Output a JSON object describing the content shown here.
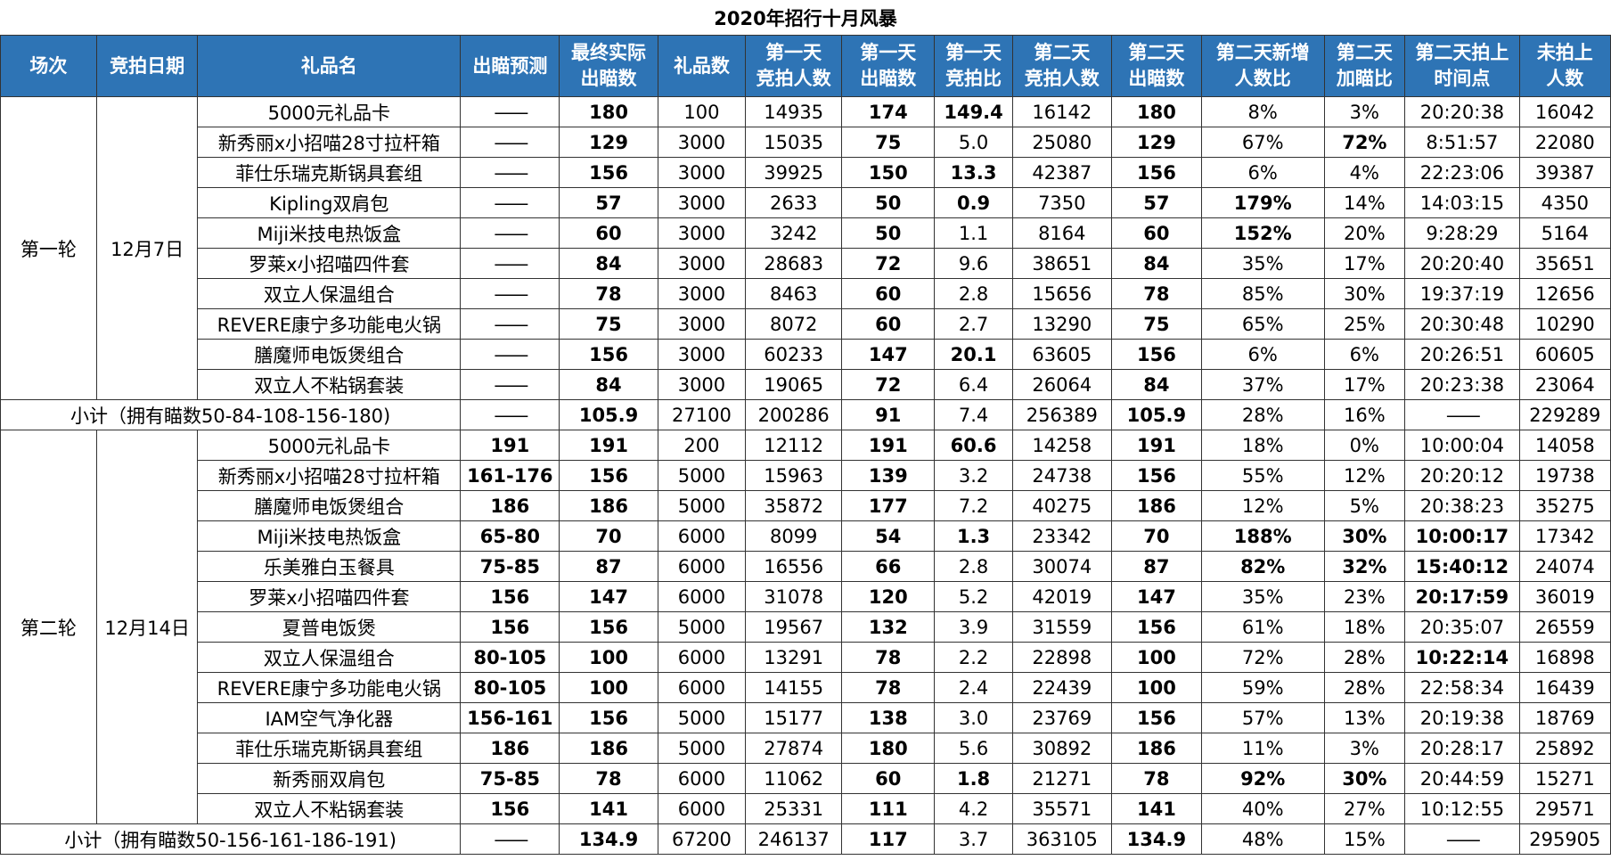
{
  "title": "2020年招行十月风暴",
  "headers": [
    "场次",
    "竞拍日期",
    "礼品名",
    "出瞄预测",
    "最终实际出瞄数",
    "礼品数",
    "第一天竞拍人数",
    "第一天出瞄数",
    "第一天竞拍比",
    "第二天竞拍人数",
    "第二天出瞄数",
    "第二天新增人数比",
    "第二天加瞄比",
    "第二天拍上时间点",
    "未拍上人数"
  ],
  "header_lines": [
    [
      "场次"
    ],
    [
      "竞拍日期"
    ],
    [
      "礼品名"
    ],
    [
      "出瞄预测"
    ],
    [
      "最终实际",
      "出瞄数"
    ],
    [
      "礼品数"
    ],
    [
      "第一天",
      "竞拍人数"
    ],
    [
      "第一天",
      "出瞄数"
    ],
    [
      "第一天",
      "竞拍比"
    ],
    [
      "第二天",
      "竞拍人数"
    ],
    [
      "第二天",
      "出瞄数"
    ],
    [
      "第二天新增",
      "人数比"
    ],
    [
      "第二天",
      "加瞄比"
    ],
    [
      "第二天拍上",
      "时间点"
    ],
    [
      "未拍上",
      "人数"
    ]
  ],
  "colors": {
    "header_bg": "#2e74b5",
    "red": "#e00000",
    "green": "#1fa84a"
  },
  "rounds": [
    {
      "name": "第一轮",
      "date": "12月7日",
      "rows": [
        {
          "gift": "5000元礼品卡",
          "pred": "——",
          "pred_color": "red",
          "final": "180",
          "gifts": "100",
          "d1_people": "14935",
          "d1_out": "174",
          "d1_ratio": "149.4",
          "d1_ratio_color": "red",
          "d2_people": "16142",
          "d2_out": "180",
          "d2_new": "8%",
          "d2_new_color": "",
          "d2_add": "3%",
          "d2_add_color": "",
          "d2_time": "20:20:38",
          "d2_time_bold": false,
          "miss": "16042"
        },
        {
          "gift": "新秀丽x小招喵28寸拉杆箱",
          "pred": "——",
          "pred_color": "red",
          "final": "129",
          "gifts": "3000",
          "d1_people": "15035",
          "d1_out": "75",
          "d1_ratio": "5.0",
          "d1_ratio_color": "",
          "d2_people": "25080",
          "d2_out": "129",
          "d2_new": "67%",
          "d2_new_color": "",
          "d2_add": "72%",
          "d2_add_color": "red",
          "d2_time": "8:51:57",
          "d2_time_bold": false,
          "miss": "22080"
        },
        {
          "gift": "菲仕乐瑞克斯锅具套组",
          "pred": "——",
          "pred_color": "red",
          "final": "156",
          "gifts": "3000",
          "d1_people": "39925",
          "d1_out": "150",
          "d1_ratio": "13.3",
          "d1_ratio_color": "red",
          "d2_people": "42387",
          "d2_out": "156",
          "d2_new": "6%",
          "d2_new_color": "",
          "d2_add": "4%",
          "d2_add_color": "",
          "d2_time": "22:23:06",
          "d2_time_bold": false,
          "miss": "39387"
        },
        {
          "gift": "Kipling双肩包",
          "pred": "——",
          "pred_color": "red",
          "final": "57",
          "gifts": "3000",
          "d1_people": "2633",
          "d1_out": "50",
          "d1_ratio": "0.9",
          "d1_ratio_color": "green",
          "d2_people": "7350",
          "d2_out": "57",
          "d2_new": "179%",
          "d2_new_color": "red",
          "d2_add": "14%",
          "d2_add_color": "",
          "d2_time": "14:03:15",
          "d2_time_bold": false,
          "miss": "4350"
        },
        {
          "gift": "Miji米技电热饭盒",
          "pred": "——",
          "pred_color": "red",
          "final": "60",
          "gifts": "3000",
          "d1_people": "3242",
          "d1_out": "50",
          "d1_ratio": "1.1",
          "d1_ratio_color": "",
          "d2_people": "8164",
          "d2_out": "60",
          "d2_new": "152%",
          "d2_new_color": "red",
          "d2_add": "20%",
          "d2_add_color": "",
          "d2_time": "9:28:29",
          "d2_time_bold": false,
          "miss": "5164"
        },
        {
          "gift": "罗莱x小招喵四件套",
          "pred": "——",
          "pred_color": "red",
          "final": "84",
          "gifts": "3000",
          "d1_people": "28683",
          "d1_out": "72",
          "d1_ratio": "9.6",
          "d1_ratio_color": "",
          "d2_people": "38651",
          "d2_out": "84",
          "d2_new": "35%",
          "d2_new_color": "",
          "d2_add": "17%",
          "d2_add_color": "",
          "d2_time": "20:20:40",
          "d2_time_bold": false,
          "miss": "35651"
        },
        {
          "gift": "双立人保温组合",
          "pred": "——",
          "pred_color": "red",
          "final": "78",
          "gifts": "3000",
          "d1_people": "8463",
          "d1_out": "60",
          "d1_ratio": "2.8",
          "d1_ratio_color": "",
          "d2_people": "15656",
          "d2_out": "78",
          "d2_new": "85%",
          "d2_new_color": "",
          "d2_add": "30%",
          "d2_add_color": "",
          "d2_time": "19:37:19",
          "d2_time_bold": false,
          "miss": "12656"
        },
        {
          "gift": "REVERE康宁多功能电火锅",
          "pred": "——",
          "pred_color": "red",
          "final": "75",
          "gifts": "3000",
          "d1_people": "8072",
          "d1_out": "60",
          "d1_ratio": "2.7",
          "d1_ratio_color": "",
          "d2_people": "13290",
          "d2_out": "75",
          "d2_new": "65%",
          "d2_new_color": "",
          "d2_add": "25%",
          "d2_add_color": "",
          "d2_time": "20:30:48",
          "d2_time_bold": false,
          "miss": "10290"
        },
        {
          "gift": "膳魔师电饭煲组合",
          "pred": "——",
          "pred_color": "red",
          "final": "156",
          "gifts": "3000",
          "d1_people": "60233",
          "d1_out": "147",
          "d1_ratio": "20.1",
          "d1_ratio_color": "red",
          "d2_people": "63605",
          "d2_out": "156",
          "d2_new": "6%",
          "d2_new_color": "",
          "d2_add": "6%",
          "d2_add_color": "",
          "d2_time": "20:26:51",
          "d2_time_bold": false,
          "miss": "60605"
        },
        {
          "gift": "双立人不粘锅套装",
          "pred": "——",
          "pred_color": "red",
          "final": "84",
          "gifts": "3000",
          "d1_people": "19065",
          "d1_out": "72",
          "d1_ratio": "6.4",
          "d1_ratio_color": "",
          "d2_people": "26064",
          "d2_out": "84",
          "d2_new": "37%",
          "d2_new_color": "",
          "d2_add": "17%",
          "d2_add_color": "",
          "d2_time": "20:23:38",
          "d2_time_bold": false,
          "miss": "23064"
        }
      ],
      "subtotal": {
        "label": "小计（拥有瞄数50-84-108-156-180)",
        "pred": "——",
        "final": "105.9",
        "gifts": "27100",
        "d1_people": "200286",
        "d1_out": "91",
        "d1_ratio": "7.4",
        "d2_people": "256389",
        "d2_out": "105.9",
        "d2_new": "28%",
        "d2_add": "16%",
        "d2_time": "——",
        "miss": "229289"
      }
    },
    {
      "name": "第二轮",
      "date": "12月14日",
      "rows": [
        {
          "gift": "5000元礼品卡",
          "pred": "191",
          "pred_color": "green",
          "final": "191",
          "gifts": "200",
          "d1_people": "12112",
          "d1_out": "191",
          "d1_ratio": "60.6",
          "d1_ratio_color": "red",
          "d2_people": "14258",
          "d2_out": "191",
          "d2_new": "18%",
          "d2_new_color": "",
          "d2_add": "0%",
          "d2_add_color": "",
          "d2_time": "10:00:04",
          "d2_time_bold": false,
          "miss": "14058"
        },
        {
          "gift": "新秀丽x小招喵28寸拉杆箱",
          "pred": "161-176",
          "pred_color": "red",
          "final": "156",
          "gifts": "5000",
          "d1_people": "15963",
          "d1_out": "139",
          "d1_ratio": "3.2",
          "d1_ratio_color": "",
          "d2_people": "24738",
          "d2_out": "156",
          "d2_new": "55%",
          "d2_new_color": "",
          "d2_add": "12%",
          "d2_add_color": "",
          "d2_time": "20:20:12",
          "d2_time_bold": false,
          "miss": "19738"
        },
        {
          "gift": "膳魔师电饭煲组合",
          "pred": "186",
          "pred_color": "green",
          "final": "186",
          "gifts": "5000",
          "d1_people": "35872",
          "d1_out": "177",
          "d1_ratio": "7.2",
          "d1_ratio_color": "",
          "d2_people": "40275",
          "d2_out": "186",
          "d2_new": "12%",
          "d2_new_color": "",
          "d2_add": "5%",
          "d2_add_color": "",
          "d2_time": "20:38:23",
          "d2_time_bold": false,
          "miss": "35275"
        },
        {
          "gift": "Miji米技电热饭盒",
          "pred": "65-80",
          "pred_color": "green",
          "final": "70",
          "gifts": "6000",
          "d1_people": "8099",
          "d1_out": "54",
          "d1_ratio": "1.3",
          "d1_ratio_color": "green",
          "d2_people": "23342",
          "d2_out": "70",
          "d2_new": "188%",
          "d2_new_color": "red",
          "d2_add": "30%",
          "d2_add_color": "red",
          "d2_time": "10:00:17",
          "d2_time_bold": true,
          "miss": "17342"
        },
        {
          "gift": "乐美雅白玉餐具",
          "pred": "75-85",
          "pred_color": "red",
          "final": "87",
          "gifts": "6000",
          "d1_people": "16556",
          "d1_out": "66",
          "d1_ratio": "2.8",
          "d1_ratio_color": "",
          "d2_people": "30074",
          "d2_out": "87",
          "d2_new": "82%",
          "d2_new_color": "red",
          "d2_add": "32%",
          "d2_add_color": "red",
          "d2_time": "15:40:12",
          "d2_time_bold": true,
          "miss": "24074"
        },
        {
          "gift": "罗莱x小招喵四件套",
          "pred": "156",
          "pred_color": "red",
          "final": "147",
          "gifts": "6000",
          "d1_people": "31078",
          "d1_out": "120",
          "d1_ratio": "5.2",
          "d1_ratio_color": "",
          "d2_people": "42019",
          "d2_out": "147",
          "d2_new": "35%",
          "d2_new_color": "",
          "d2_add": "23%",
          "d2_add_color": "",
          "d2_time": "20:17:59",
          "d2_time_bold": true,
          "miss": "36019"
        },
        {
          "gift": "夏普电饭煲",
          "pred": "156",
          "pred_color": "green",
          "final": "156",
          "gifts": "5000",
          "d1_people": "19567",
          "d1_out": "132",
          "d1_ratio": "3.9",
          "d1_ratio_color": "",
          "d2_people": "31559",
          "d2_out": "156",
          "d2_new": "61%",
          "d2_new_color": "",
          "d2_add": "18%",
          "d2_add_color": "",
          "d2_time": "20:35:07",
          "d2_time_bold": false,
          "miss": "26559"
        },
        {
          "gift": "双立人保温组合",
          "pred": "80-105",
          "pred_color": "green",
          "final": "100",
          "gifts": "6000",
          "d1_people": "13291",
          "d1_out": "78",
          "d1_ratio": "2.2",
          "d1_ratio_color": "",
          "d2_people": "22898",
          "d2_out": "100",
          "d2_new": "72%",
          "d2_new_color": "",
          "d2_add": "28%",
          "d2_add_color": "",
          "d2_time": "10:22:14",
          "d2_time_bold": true,
          "miss": "16898"
        },
        {
          "gift": "REVERE康宁多功能电火锅",
          "pred": "80-105",
          "pred_color": "green",
          "final": "100",
          "gifts": "6000",
          "d1_people": "14155",
          "d1_out": "78",
          "d1_ratio": "2.4",
          "d1_ratio_color": "",
          "d2_people": "22439",
          "d2_out": "100",
          "d2_new": "59%",
          "d2_new_color": "",
          "d2_add": "28%",
          "d2_add_color": "",
          "d2_time": "22:58:34",
          "d2_time_bold": false,
          "miss": "16439"
        },
        {
          "gift": "IAM空气净化器",
          "pred": "156-161",
          "pred_color": "green",
          "final": "156",
          "gifts": "5000",
          "d1_people": "15177",
          "d1_out": "138",
          "d1_ratio": "3.0",
          "d1_ratio_color": "",
          "d2_people": "23769",
          "d2_out": "156",
          "d2_new": "57%",
          "d2_new_color": "",
          "d2_add": "13%",
          "d2_add_color": "",
          "d2_time": "20:19:38",
          "d2_time_bold": false,
          "miss": "18769"
        },
        {
          "gift": "菲仕乐瑞克斯锅具套组",
          "pred": "186",
          "pred_color": "green",
          "final": "186",
          "gifts": "5000",
          "d1_people": "27874",
          "d1_out": "180",
          "d1_ratio": "5.6",
          "d1_ratio_color": "",
          "d2_people": "30892",
          "d2_out": "186",
          "d2_new": "11%",
          "d2_new_color": "",
          "d2_add": "3%",
          "d2_add_color": "",
          "d2_time": "20:28:17",
          "d2_time_bold": false,
          "miss": "25892"
        },
        {
          "gift": "新秀丽双肩包",
          "pred": "75-85",
          "pred_color": "green",
          "final": "78",
          "gifts": "6000",
          "d1_people": "11062",
          "d1_out": "60",
          "d1_ratio": "1.8",
          "d1_ratio_color": "green",
          "d2_people": "21271",
          "d2_out": "78",
          "d2_new": "92%",
          "d2_new_color": "red",
          "d2_add": "30%",
          "d2_add_color": "red",
          "d2_time": "20:44:59",
          "d2_time_bold": false,
          "miss": "15271"
        },
        {
          "gift": "双立人不粘锅套装",
          "pred": "156",
          "pred_color": "red",
          "final": "141",
          "gifts": "6000",
          "d1_people": "25331",
          "d1_out": "111",
          "d1_ratio": "4.2",
          "d1_ratio_color": "",
          "d2_people": "35571",
          "d2_out": "141",
          "d2_new": "40%",
          "d2_new_color": "",
          "d2_add": "27%",
          "d2_add_color": "",
          "d2_time": "10:12:55",
          "d2_time_bold": false,
          "miss": "29571"
        }
      ],
      "subtotal": {
        "label": "小计（拥有瞄数50-156-161-186-191)",
        "pred": "——",
        "final": "134.9",
        "gifts": "67200",
        "d1_people": "246137",
        "d1_out": "117",
        "d1_ratio": "3.7",
        "d2_people": "363105",
        "d2_out": "134.9",
        "d2_new": "48%",
        "d2_add": "15%",
        "d2_time": "——",
        "miss": "295905"
      }
    }
  ]
}
